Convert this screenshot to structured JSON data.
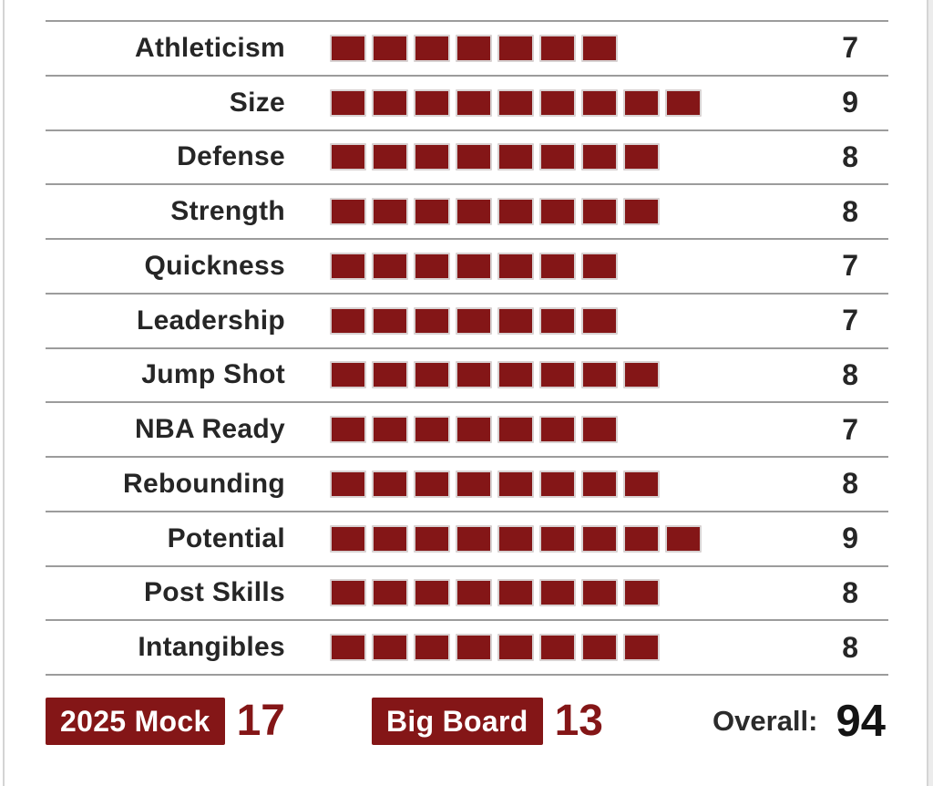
{
  "chart_data": {
    "type": "bar",
    "orientation": "horizontal",
    "bar_style": "discrete-blocks",
    "categories": [
      "Athleticism",
      "Size",
      "Defense",
      "Strength",
      "Quickness",
      "Leadership",
      "Jump Shot",
      "NBA Ready",
      "Rebounding",
      "Potential",
      "Post Skills",
      "Intangibles"
    ],
    "values": [
      7,
      9,
      8,
      8,
      7,
      7,
      8,
      7,
      8,
      9,
      8,
      8
    ],
    "value_range": [
      0,
      10
    ],
    "grid": "horizontal-dividers",
    "legend": "none"
  },
  "footer": {
    "mock_label": "2025 Mock",
    "mock_value": "17",
    "big_board_label": "Big Board",
    "big_board_value": "13",
    "overall_label": "Overall:",
    "overall_value": "94"
  },
  "colors": {
    "maroon": "#841617",
    "divider": "#9c9c9c",
    "label_text": "#262626",
    "edge_line": "#d4d4d4"
  }
}
